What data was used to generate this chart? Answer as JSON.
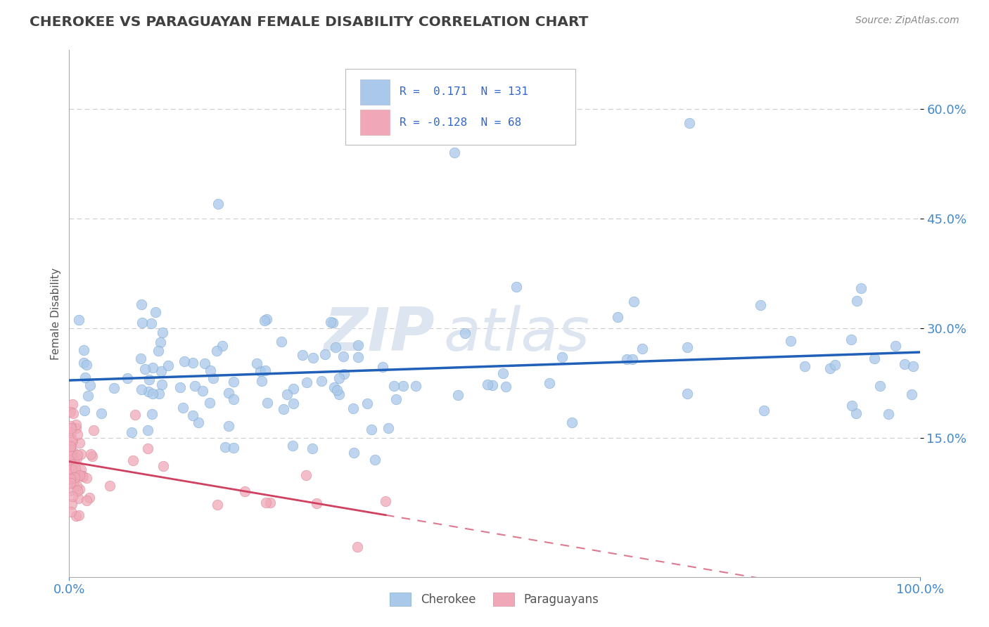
{
  "title": "CHEROKEE VS PARAGUAYAN FEMALE DISABILITY CORRELATION CHART",
  "source_text": "Source: ZipAtlas.com",
  "ylabel": "Female Disability",
  "xlabel": "",
  "xlim": [
    0.0,
    1.0
  ],
  "ylim": [
    -0.04,
    0.68
  ],
  "xtick_labels": [
    "0.0%",
    "100.0%"
  ],
  "xtick_positions": [
    0.0,
    1.0
  ],
  "ytick_labels": [
    "15.0%",
    "30.0%",
    "45.0%",
    "60.0%"
  ],
  "ytick_positions": [
    0.15,
    0.3,
    0.45,
    0.6
  ],
  "cherokee_R": 0.171,
  "cherokee_N": 131,
  "paraguayan_R": -0.128,
  "paraguayan_N": 68,
  "cherokee_color": "#aac8ea",
  "cherokee_edge_color": "#7aaad0",
  "cherokee_line_color": "#2060b8",
  "paraguayan_color": "#f0a8b8",
  "paraguayan_edge_color": "#d88898",
  "paraguayan_line_color": "#d04060",
  "background_color": "#ffffff",
  "grid_color": "#cccccc",
  "title_color": "#404040",
  "watermark_zip": "ZIP",
  "watermark_atlas": "atlas",
  "watermark_color": "#dde5f0",
  "legend_text_color": "#3366cc"
}
